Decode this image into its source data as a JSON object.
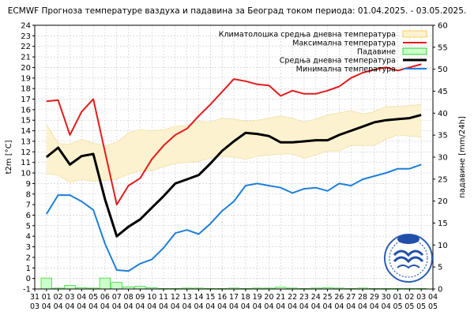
{
  "chart_data": {
    "type": "line",
    "title": "ECMWF Прогноза температуре ваздуха и падавина за Београд током периода: 01.04.2025. - 03.05.2025.",
    "ylabel_left": "t2m [°C]",
    "ylabel_right": "падавине [mm/24h]",
    "ylim_left": [
      -1,
      24
    ],
    "ylim_right": [
      0,
      60
    ],
    "yticks_left": [
      "-1",
      "0",
      "1",
      "2",
      "3",
      "4",
      "5",
      "6",
      "7",
      "8",
      "9",
      "10",
      "11",
      "12",
      "13",
      "14",
      "15",
      "16",
      "17",
      "18",
      "19",
      "20",
      "21",
      "22",
      "23",
      "24"
    ],
    "yticks_right": [
      "0",
      "5",
      "10",
      "15",
      "20",
      "25",
      "30",
      "35",
      "40",
      "45",
      "50",
      "55",
      "60"
    ],
    "x_day": [
      "31",
      "01",
      "02",
      "03",
      "04",
      "05",
      "06",
      "07",
      "08",
      "09",
      "10",
      "11",
      "12",
      "13",
      "14",
      "15",
      "16",
      "17",
      "18",
      "19",
      "20",
      "21",
      "22",
      "23",
      "24",
      "25",
      "26",
      "27",
      "28",
      "29",
      "30",
      "01",
      "02",
      "03",
      "04"
    ],
    "x_month": [
      "03",
      "04",
      "04",
      "04",
      "04",
      "04",
      "04",
      "04",
      "04",
      "04",
      "04",
      "04",
      "04",
      "04",
      "04",
      "04",
      "04",
      "04",
      "04",
      "04",
      "04",
      "04",
      "04",
      "04",
      "04",
      "04",
      "04",
      "04",
      "04",
      "04",
      "04",
      "05",
      "05",
      "05",
      "05"
    ],
    "x_index": [
      1,
      2,
      3,
      4,
      5,
      6,
      7,
      8,
      9,
      10,
      11,
      12,
      13,
      14,
      15,
      16,
      17,
      18,
      19,
      20,
      21,
      22,
      23,
      24,
      25,
      26,
      27,
      28,
      29,
      30,
      31,
      32,
      33
    ],
    "legend_placement": "top-right",
    "grid": true,
    "series": [
      {
        "name": "Климатолошка средња дневна температура",
        "kind": "band",
        "color": "#f5c842",
        "fill": "#fdf2cf",
        "upper": [
          14.6,
          12.8,
          12.7,
          13.2,
          12.8,
          12.6,
          12.9,
          13.8,
          14.1,
          14.0,
          14.1,
          14.4,
          14.5,
          14.9,
          14.8,
          15.2,
          15.1,
          14.9,
          15.0,
          15.2,
          15.4,
          15.2,
          14.8,
          15.1,
          15.5,
          15.7,
          15.9,
          15.6,
          15.8,
          16.3,
          16.3,
          16.4,
          16.5
        ],
        "lower": [
          9.9,
          9.8,
          9.1,
          9.4,
          9.2,
          9.3,
          9.4,
          9.9,
          10.2,
          10.2,
          10.6,
          10.9,
          11.0,
          11.1,
          11.4,
          11.6,
          11.5,
          11.3,
          11.6,
          11.7,
          11.8,
          11.8,
          11.4,
          11.7,
          12.1,
          12.1,
          12.6,
          12.6,
          12.6,
          13.2,
          13.6,
          13.5,
          13.4
        ]
      },
      {
        "name": "Максимална температура",
        "kind": "line",
        "color": "#e31a1c",
        "values": [
          16.8,
          16.9,
          13.6,
          15.8,
          17.0,
          12.0,
          7.0,
          8.8,
          9.5,
          11.3,
          12.6,
          13.6,
          14.2,
          15.4,
          16.5,
          17.7,
          18.9,
          18.7,
          18.4,
          18.3,
          17.3,
          17.8,
          17.5,
          17.5,
          17.8,
          18.2,
          19.0,
          19.5,
          19.8,
          20.0,
          19.7,
          20.0,
          20.3
        ]
      },
      {
        "name": "Падавине",
        "kind": "bar",
        "axis": "right",
        "color": "#00cc00",
        "fill": "#ccffcc",
        "values": [
          2.5,
          0.2,
          0.8,
          0.3,
          0.2,
          2.5,
          1.5,
          0.5,
          0.6,
          0.3,
          0.1,
          0.1,
          0.2,
          0.2,
          0.1,
          0.1,
          0.2,
          0.1,
          0.2,
          0.2,
          0.4,
          0.2,
          0.1,
          0.2,
          0.3,
          0.2,
          0.1,
          0.2,
          0.1,
          0.1,
          0.1,
          0.1,
          0.1
        ]
      },
      {
        "name": "Средња дневна температура",
        "kind": "line",
        "color": "#000000",
        "values": [
          11.5,
          12.4,
          10.8,
          11.6,
          11.8,
          7.5,
          4.0,
          4.9,
          5.6,
          6.7,
          7.8,
          9.0,
          9.4,
          9.8,
          10.9,
          12.1,
          13.0,
          13.8,
          13.7,
          13.5,
          12.9,
          12.9,
          13.0,
          13.1,
          13.1,
          13.6,
          14.0,
          14.4,
          14.8,
          15.0,
          15.1,
          15.2,
          15.5
        ]
      },
      {
        "name": "Минимална температура",
        "kind": "line",
        "color": "#1e7fd8",
        "values": [
          6.1,
          7.9,
          7.9,
          7.3,
          6.5,
          3.3,
          0.8,
          0.7,
          1.4,
          1.8,
          2.9,
          4.3,
          4.6,
          4.2,
          5.2,
          6.4,
          7.3,
          8.8,
          9.0,
          8.8,
          8.6,
          8.1,
          8.5,
          8.6,
          8.3,
          9.0,
          8.8,
          9.4,
          9.7,
          10.0,
          10.4,
          10.4,
          10.8
        ]
      }
    ]
  }
}
